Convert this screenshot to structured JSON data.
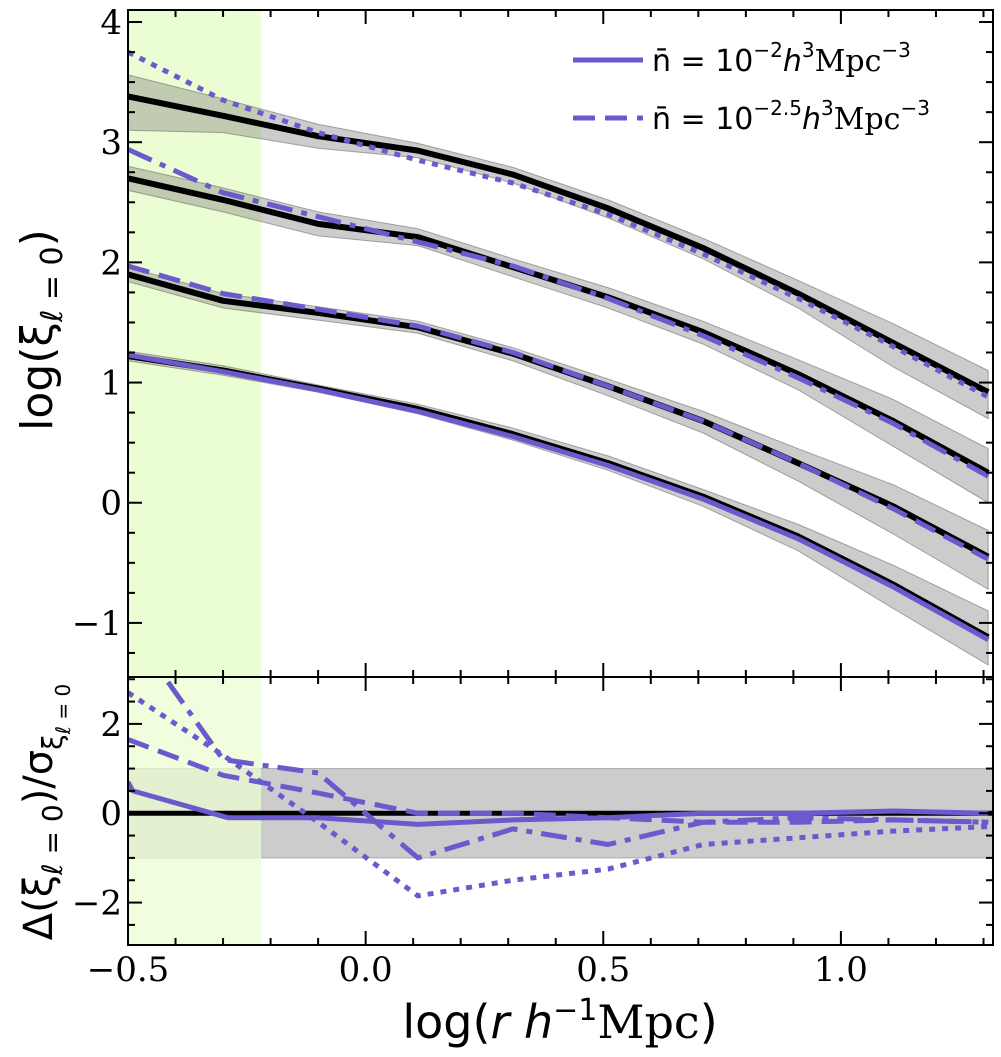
{
  "chart_data": [
    {
      "type": "line",
      "panel": "top",
      "ylabel": "log(ξℓ=0)",
      "ylim": [
        -1.45,
        4.1
      ],
      "xlim": [
        -0.5,
        1.32
      ],
      "yticks": [
        -1,
        0,
        1,
        2,
        3,
        4
      ],
      "ytick_labels": [
        "−1",
        "0",
        "1",
        "2",
        "3",
        "4"
      ],
      "x": [
        -0.5,
        -0.3,
        -0.1,
        0.11,
        0.31,
        0.51,
        0.71,
        0.91,
        1.11,
        1.31
      ],
      "shaded_region": {
        "xmin": -0.5,
        "xmax": -0.22,
        "color": "#ebfdd3"
      },
      "legend": {
        "position": "top-right",
        "entries": [
          {
            "label": "n̄ = 10^-2 h^3 Mpc^-3",
            "linestyle": "solid"
          },
          {
            "label": "n̄ = 10^-2.5 h^3 Mpc^-3",
            "linestyle": "dashed"
          }
        ]
      },
      "series": [
        {
          "role": "reference",
          "color": "#000000",
          "linestyle": "solid",
          "values": [
            1.22,
            1.1,
            0.95,
            0.78,
            0.57,
            0.33,
            0.05,
            -0.28,
            -0.68,
            -1.12
          ],
          "err_low": [
            1.18,
            1.06,
            0.92,
            0.74,
            0.52,
            0.27,
            -0.03,
            -0.4,
            -0.88,
            -1.35
          ],
          "err_high": [
            1.26,
            1.14,
            0.98,
            0.82,
            0.62,
            0.39,
            0.11,
            -0.18,
            -0.52,
            -0.9
          ]
        },
        {
          "role": "model",
          "color": "#6a5acd",
          "linestyle": "solid",
          "values": [
            1.23,
            1.09,
            0.94,
            0.76,
            0.55,
            0.31,
            0.03,
            -0.3,
            -0.7,
            -1.14
          ]
        },
        {
          "role": "reference",
          "color": "#000000",
          "linestyle": "solid",
          "values": [
            1.9,
            1.68,
            1.58,
            1.46,
            1.24,
            0.97,
            0.68,
            0.33,
            -0.03,
            -0.45
          ],
          "err_low": [
            1.84,
            1.62,
            1.52,
            1.41,
            1.18,
            0.89,
            0.58,
            0.18,
            -0.26,
            -0.72
          ],
          "err_high": [
            1.96,
            1.74,
            1.63,
            1.51,
            1.29,
            1.03,
            0.76,
            0.45,
            0.15,
            -0.23
          ]
        },
        {
          "role": "model",
          "color": "#6a5acd",
          "linestyle": "dashed",
          "values": [
            1.97,
            1.74,
            1.61,
            1.47,
            1.25,
            0.97,
            0.68,
            0.33,
            -0.05,
            -0.47
          ]
        },
        {
          "role": "reference",
          "color": "#000000",
          "linestyle": "solid",
          "values": [
            2.7,
            2.52,
            2.32,
            2.21,
            1.96,
            1.71,
            1.42,
            1.07,
            0.68,
            0.25
          ],
          "err_low": [
            2.6,
            2.42,
            2.22,
            2.14,
            1.88,
            1.62,
            1.32,
            0.94,
            0.47,
            0.0
          ],
          "err_high": [
            2.8,
            2.62,
            2.42,
            2.28,
            2.03,
            1.79,
            1.51,
            1.19,
            0.86,
            0.45
          ]
        },
        {
          "role": "model",
          "color": "#6a5acd",
          "linestyle": "dashdot",
          "values": [
            2.94,
            2.58,
            2.38,
            2.17,
            1.97,
            1.7,
            1.39,
            1.04,
            0.66,
            0.22
          ]
        },
        {
          "role": "reference",
          "color": "#000000",
          "linestyle": "solid",
          "values": [
            3.38,
            3.22,
            3.05,
            2.93,
            2.73,
            2.45,
            2.12,
            1.74,
            1.33,
            0.92
          ],
          "err_low": [
            3.1,
            3.08,
            2.95,
            2.87,
            2.66,
            2.37,
            2.03,
            1.62,
            1.13,
            0.7
          ],
          "err_high": [
            3.56,
            3.36,
            3.15,
            2.99,
            2.79,
            2.52,
            2.2,
            1.85,
            1.49,
            1.1
          ]
        },
        {
          "role": "model",
          "color": "#6a5acd",
          "linestyle": "dotted",
          "values": [
            3.75,
            3.35,
            3.08,
            2.85,
            2.66,
            2.4,
            2.07,
            1.7,
            1.3,
            0.88
          ]
        }
      ]
    },
    {
      "type": "line",
      "panel": "bottom",
      "ylabel": "Δ(ξℓ=0)/σξℓ=0",
      "xlabel": "log(r h⁻¹Mpc)",
      "ylim": [
        -2.95,
        3.05
      ],
      "xlim": [
        -0.5,
        1.32
      ],
      "yticks": [
        -2,
        0,
        2
      ],
      "ytick_labels": [
        "−2",
        "0",
        "2"
      ],
      "xticks": [
        -0.5,
        0.0,
        0.5,
        1.0
      ],
      "xtick_labels": [
        "−0.5",
        "0.0",
        "0.5",
        "1.0"
      ],
      "band": {
        "ymin": -1,
        "ymax": 1,
        "color": "#cccccc"
      },
      "shaded_region": {
        "xmin": -0.5,
        "xmax": -0.22,
        "color": "#ebfdd3"
      },
      "reference_line": {
        "y": 0,
        "color": "#000000"
      },
      "series": [
        {
          "color": "#6a5acd",
          "linestyle": "solid",
          "x": [
            -0.5,
            -0.49,
            -0.29,
            -0.1,
            0.11,
            0.31,
            0.51,
            0.71,
            0.91,
            1.11,
            1.31
          ],
          "values": [
            0.7,
            0.5,
            -0.1,
            -0.1,
            -0.25,
            -0.15,
            -0.1,
            0.0,
            0.0,
            0.05,
            0.0
          ]
        },
        {
          "color": "#6a5acd",
          "linestyle": "dashed",
          "x": [
            -0.5,
            -0.3,
            -0.1,
            0.11,
            0.31,
            0.51,
            0.71,
            0.91,
            1.11,
            1.31
          ],
          "values": [
            1.65,
            0.85,
            0.45,
            0.0,
            0.0,
            -0.1,
            -0.2,
            -0.2,
            -0.15,
            -0.2
          ]
        },
        {
          "color": "#6a5acd",
          "linestyle": "dashdot",
          "x": [
            -0.5,
            -0.42,
            -0.3,
            -0.1,
            0.11,
            0.31,
            0.51,
            0.71,
            0.91,
            1.11,
            1.31
          ],
          "values": [
            3.6,
            3.0,
            1.2,
            0.9,
            -1.0,
            -0.35,
            -0.7,
            -0.2,
            -0.1,
            -0.15,
            -0.2
          ]
        },
        {
          "color": "#6a5acd",
          "linestyle": "dotted",
          "x": [
            -0.5,
            -0.3,
            -0.1,
            0.11,
            0.31,
            0.51,
            0.71,
            0.91,
            1.11,
            1.31
          ],
          "values": [
            2.7,
            1.3,
            -0.2,
            -1.85,
            -1.5,
            -1.25,
            -0.7,
            -0.55,
            -0.4,
            -0.3
          ]
        }
      ]
    }
  ]
}
